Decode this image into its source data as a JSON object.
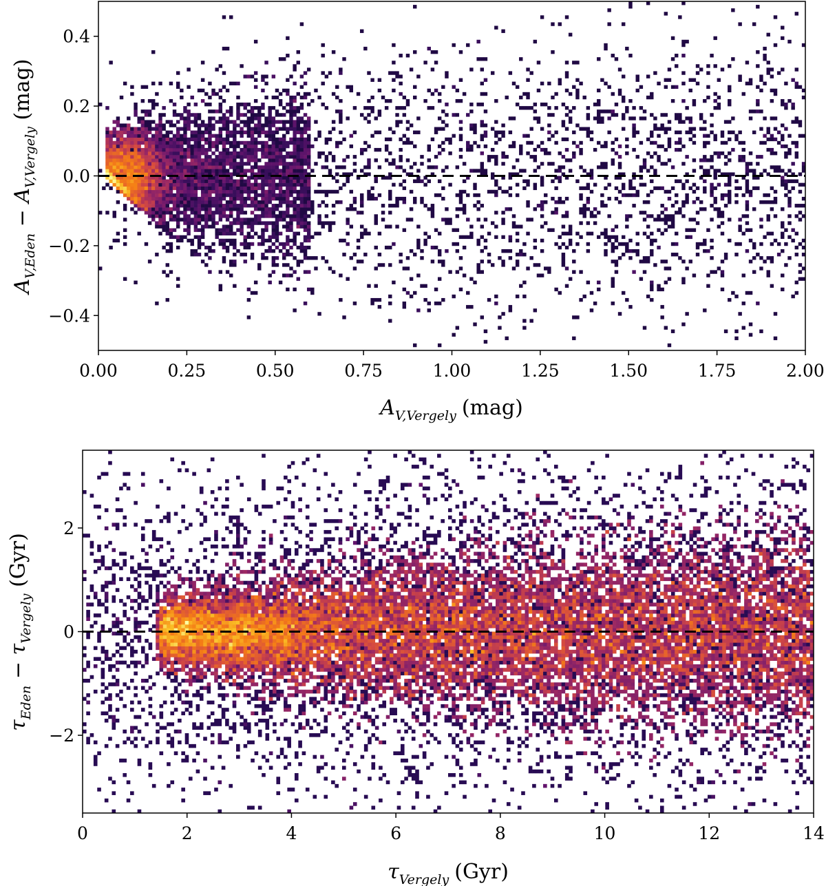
{
  "chart_data": [
    {
      "type": "heatmap",
      "id": "top",
      "title": "",
      "xlabel": {
        "symbol": "A",
        "sub": "V,Vergely",
        "unit": "(mag)"
      },
      "ylabel": {
        "sym1": "A",
        "sub1": "V,Eden",
        "op": " − ",
        "sym2": "A",
        "sub2": "V,Vergely",
        "unit": " (mag)"
      },
      "xlim": [
        0.0,
        2.0
      ],
      "ylim": [
        -0.5,
        0.5
      ],
      "xticks": [
        0.0,
        0.25,
        0.5,
        0.75,
        1.0,
        1.25,
        1.5,
        1.75,
        2.0
      ],
      "xtick_labels": [
        "0.00",
        "0.25",
        "0.50",
        "0.75",
        "1.00",
        "1.25",
        "1.50",
        "1.75",
        "2.00"
      ],
      "yticks": [
        -0.4,
        -0.2,
        0.0,
        0.2,
        0.4
      ],
      "ytick_labels": [
        "−0.4",
        "−0.2",
        "0.0",
        "0.2",
        "0.4"
      ],
      "reference_line_y": 0.0,
      "colormap": "inferno",
      "density": {
        "core_x": 0.07,
        "core_y": 0.0,
        "spread_x_low": 0.05,
        "spread_x_high": 0.6,
        "lower_envelope_slope": -0.95,
        "scatter_spread_y": 0.22
      }
    },
    {
      "type": "heatmap",
      "id": "bottom",
      "title": "",
      "xlabel": {
        "symbol": "τ",
        "sub": "Vergely",
        "unit": "(Gyr)"
      },
      "ylabel": {
        "sym1": "τ",
        "sub1": "Eden",
        "op": " − ",
        "sym2": "τ",
        "sub2": "Vergely",
        "unit": " (Gyr)"
      },
      "xlim": [
        0,
        14
      ],
      "ylim": [
        -3.5,
        3.5
      ],
      "xticks": [
        0,
        2,
        4,
        6,
        8,
        10,
        12,
        14
      ],
      "xtick_labels": [
        "0",
        "2",
        "4",
        "6",
        "8",
        "10",
        "12",
        "14"
      ],
      "yticks": [
        -2,
        0,
        2
      ],
      "ytick_labels": [
        "−2",
        "0",
        "2"
      ],
      "reference_line_y": 0.0,
      "colormap": "inferno",
      "density": {
        "core_x_range": [
          1.5,
          14
        ],
        "peak_x": 2.5,
        "spread_y_start": 0.25,
        "spread_y_end": 0.9,
        "scatter_spread_y": 1.6
      }
    }
  ]
}
